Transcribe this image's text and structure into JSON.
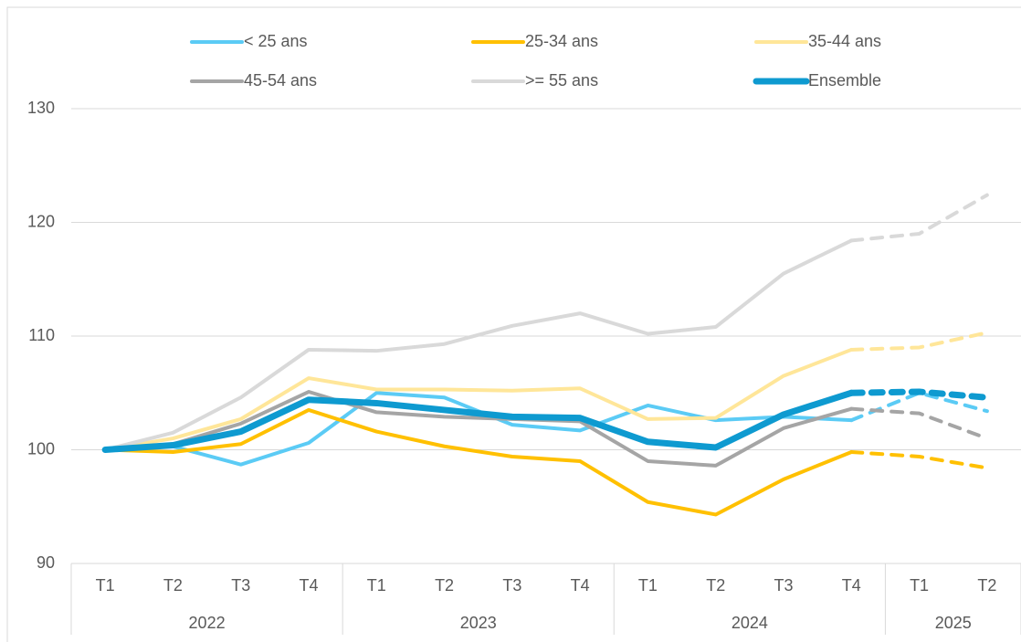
{
  "chart_data": {
    "type": "line",
    "categories": [
      "T1",
      "T2",
      "T3",
      "T4",
      "T1",
      "T2",
      "T3",
      "T4",
      "T1",
      "T2",
      "T3",
      "T4",
      "T1",
      "T2"
    ],
    "groups": [
      {
        "label": "2022",
        "size": 4
      },
      {
        "label": "2023",
        "size": 4
      },
      {
        "label": "2024",
        "size": 4
      },
      {
        "label": "2025",
        "size": 2
      }
    ],
    "series": [
      {
        "name": "< 25 ans",
        "color": "#5bcbf5",
        "width": 4,
        "values": [
          100,
          100.3,
          98.7,
          100.6,
          105,
          104.6,
          102.2,
          101.7,
          103.9,
          102.6,
          102.9,
          102.6,
          105,
          103.4
        ]
      },
      {
        "name": "25-34 ans",
        "color": "#ffc000",
        "width": 4,
        "values": [
          100,
          99.8,
          100.5,
          103.5,
          101.6,
          100.3,
          99.4,
          99.0,
          95.4,
          94.3,
          97.4,
          99.8,
          99.4,
          98.4
        ]
      },
      {
        "name": "35-44 ans",
        "color": "#ffe699",
        "width": 4,
        "values": [
          100,
          101,
          102.7,
          106.3,
          105.3,
          105.3,
          105.2,
          105.4,
          102.7,
          102.8,
          106.5,
          108.8,
          109,
          110.3
        ]
      },
      {
        "name": "45-54 ans",
        "color": "#a5a5a5",
        "width": 4,
        "values": [
          100,
          100.5,
          102.3,
          105.1,
          103.3,
          102.9,
          102.7,
          102.5,
          99.0,
          98.6,
          101.9,
          103.6,
          103.2,
          101.0
        ]
      },
      {
        "name": ">= 55 ans",
        "color": "#d9d9d9",
        "width": 4,
        "values": [
          100,
          101.5,
          104.6,
          108.8,
          108.7,
          109.3,
          110.9,
          112,
          110.2,
          110.8,
          115.5,
          118.4,
          119,
          122.4
        ]
      },
      {
        "name": "Ensemble",
        "color": "#0e9ad0",
        "width": 7,
        "values": [
          100,
          100.4,
          101.6,
          104.4,
          104.1,
          103.5,
          102.9,
          102.8,
          100.7,
          100.2,
          103.1,
          105,
          105.1,
          104.6
        ]
      }
    ],
    "projection_start_index": 11,
    "ylim": [
      90,
      130
    ],
    "yticks": [
      90,
      100,
      110,
      120,
      130
    ],
    "grid": true
  }
}
